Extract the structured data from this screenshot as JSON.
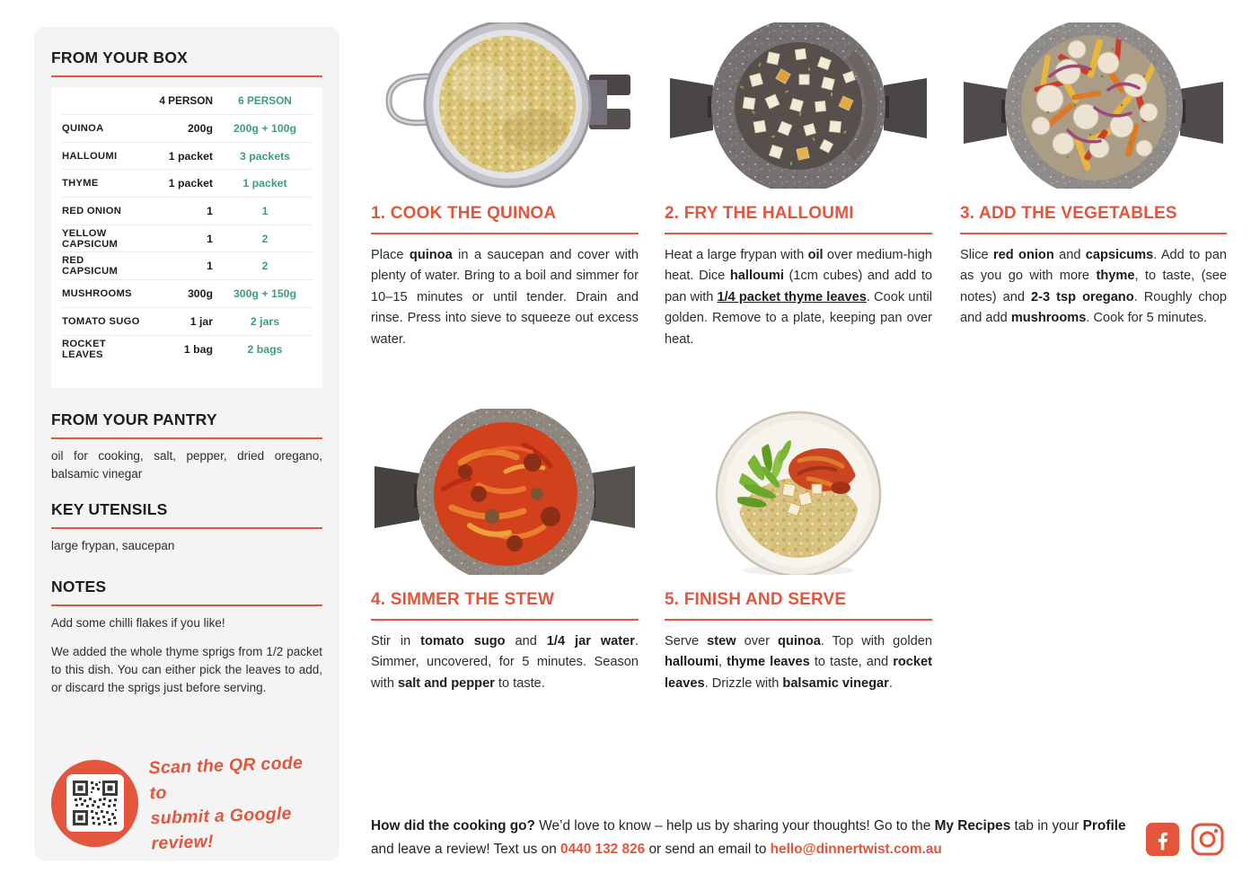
{
  "colors": {
    "accent": "#e3563d",
    "green": "#3d9f78"
  },
  "sidebar": {
    "box": {
      "title": "FROM YOUR BOX",
      "col_4": "4 PERSON",
      "col_6": "6 PERSON",
      "rows": [
        {
          "name": "QUINOA",
          "p4": "200g",
          "p6": "200g + 100g"
        },
        {
          "name": "HALLOUMI",
          "p4": "1 packet",
          "p6": "3 packets"
        },
        {
          "name": "THYME",
          "p4": "1 packet",
          "p6": "1 packet"
        },
        {
          "name": "RED ONION",
          "p4": "1",
          "p6": "1"
        },
        {
          "name": "YELLOW CAPSICUM",
          "p4": "1",
          "p6": "2"
        },
        {
          "name": "RED CAPSICUM",
          "p4": "1",
          "p6": "2"
        },
        {
          "name": "MUSHROOMS",
          "p4": "300g",
          "p6": "300g + 150g"
        },
        {
          "name": "TOMATO SUGO",
          "p4": "1 jar",
          "p6": "2 jars"
        },
        {
          "name": "ROCKET LEAVES",
          "p4": "1 bag",
          "p6": "2 bags"
        }
      ]
    },
    "pantry": {
      "title": "FROM YOUR PANTRY",
      "text": "oil for cooking, salt, pepper, dried oregano, balsamic vinegar"
    },
    "utensils": {
      "title": "KEY UTENSILS",
      "text": "large frypan, saucepan"
    },
    "notes": {
      "title": "NOTES",
      "line1": "Add some chilli flakes if you like!",
      "line2": "We added the whole thyme sprigs from 1/2 packet to this dish. You can either pick the leaves to add, or discard the sprigs just before serving."
    },
    "qr": {
      "line1": "Scan the QR code to",
      "line2": "submit a Google review!"
    }
  },
  "steps": [
    {
      "title": "1. COOK THE QUINOA",
      "photo": "quinoa-in-sieve",
      "body": [
        {
          "t": "Place "
        },
        {
          "t": "quinoa",
          "b": 1
        },
        {
          "t": " in a saucepan and cover with plenty of water. Bring to a boil and simmer for 10–15 minutes or until tender. Drain and rinse. Press into sieve to squeeze out excess water."
        }
      ]
    },
    {
      "title": "2. FRY THE HALLOUMI",
      "photo": "halloumi-in-frypan",
      "body": [
        {
          "t": "Heat a large frypan with "
        },
        {
          "t": "oil",
          "b": 1
        },
        {
          "t": " over medium-high heat. Dice "
        },
        {
          "t": "halloumi",
          "b": 1
        },
        {
          "t": " (1cm cubes) and add to pan with "
        },
        {
          "t": "1/4 packet thyme leaves",
          "b": 1,
          "u": 1
        },
        {
          "t": ". Cook until golden. Remove to a plate, keeping pan over heat."
        }
      ]
    },
    {
      "title": "3. ADD THE VEGETABLES",
      "photo": "vegetables-in-pan",
      "body": [
        {
          "t": "Slice "
        },
        {
          "t": "red onion",
          "b": 1
        },
        {
          "t": " and "
        },
        {
          "t": "capsicums",
          "b": 1
        },
        {
          "t": ". Add to pan as you go with more "
        },
        {
          "t": "thyme",
          "b": 1
        },
        {
          "t": ", to taste, (see notes) and "
        },
        {
          "t": "2-3 tsp oregano",
          "b": 1
        },
        {
          "t": ". Roughly chop and add "
        },
        {
          "t": "mushrooms",
          "b": 1
        },
        {
          "t": ". Cook for 5 minutes."
        }
      ]
    },
    {
      "title": "4. SIMMER THE STEW",
      "photo": "stew-in-pot",
      "body": [
        {
          "t": "Stir in "
        },
        {
          "t": "tomato sugo",
          "b": 1
        },
        {
          "t": " and "
        },
        {
          "t": "1/4 jar water",
          "b": 1
        },
        {
          "t": ". Simmer, uncovered, for 5 minutes. Season with "
        },
        {
          "t": "salt and pepper",
          "b": 1
        },
        {
          "t": " to taste."
        }
      ]
    },
    {
      "title": "5. FINISH AND SERVE",
      "photo": "plated-bowl",
      "body": [
        {
          "t": "Serve "
        },
        {
          "t": "stew",
          "b": 1
        },
        {
          "t": " over "
        },
        {
          "t": "quinoa",
          "b": 1
        },
        {
          "t": ". Top with golden "
        },
        {
          "t": "halloumi",
          "b": 1
        },
        {
          "t": ", "
        },
        {
          "t": "thyme leaves",
          "b": 1
        },
        {
          "t": " to taste, and "
        },
        {
          "t": "rocket leaves",
          "b": 1
        },
        {
          "t": ". Drizzle with "
        },
        {
          "t": "balsamic vinegar",
          "b": 1
        },
        {
          "t": "."
        }
      ]
    }
  ],
  "footer": {
    "segments": [
      {
        "t": "How did the cooking go?",
        "b": 1
      },
      {
        "t": " We’d love to know – help us by sharing your thoughts! Go to the "
      },
      {
        "t": "My Recipes",
        "b": 1
      },
      {
        "t": " tab in your "
      },
      {
        "t": "Profile",
        "b": 1
      },
      {
        "t": " and leave a review! Text us on "
      },
      {
        "t": "0440 132 826",
        "b": 1,
        "c": "accent",
        "n": "phone-link",
        "i": 1
      },
      {
        "t": " or send an email to "
      },
      {
        "t": "hello@dinnertwist.com.au",
        "b": 1,
        "c": "accent",
        "n": "email-link",
        "i": 1
      }
    ]
  }
}
